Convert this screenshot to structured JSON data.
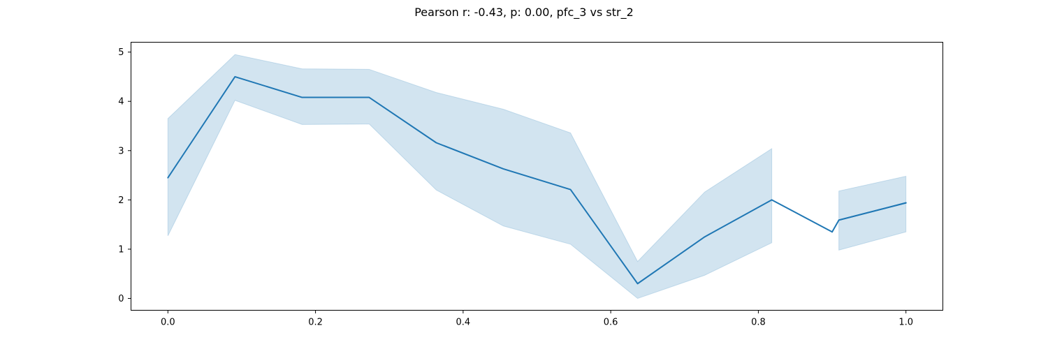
{
  "chart_data": {
    "type": "line",
    "title": "Pearson r: -0.43, p: 0.00, pfc_3 vs str_2",
    "xlabel": "",
    "ylabel": "",
    "xlim": [
      -0.05,
      1.05
    ],
    "ylim": [
      -0.24,
      5.2
    ],
    "x_ticks": [
      0.0,
      0.2,
      0.4,
      0.6,
      0.8,
      1.0
    ],
    "x_tick_labels": [
      "0.0",
      "0.2",
      "0.4",
      "0.6",
      "0.8",
      "1.0"
    ],
    "y_ticks": [
      0,
      1,
      2,
      3,
      4,
      5
    ],
    "y_tick_labels": [
      "0",
      "1",
      "2",
      "3",
      "4",
      "5"
    ],
    "grid": false,
    "legend": false,
    "line_color": "#1f77b4",
    "band_color": "#1f77b4",
    "series": [
      {
        "segments": [
          {
            "x": [
              0.0,
              0.0909,
              0.1818,
              0.2727,
              0.3636,
              0.4545,
              0.5455,
              0.6364,
              0.7273,
              0.8182
            ],
            "y": [
              2.45,
              4.5,
              4.08,
              4.08,
              3.16,
              2.63,
              2.21,
              0.3,
              1.25,
              2.0
            ],
            "ci_upper": [
              3.65,
              4.95,
              4.66,
              4.65,
              4.18,
              3.84,
              3.36,
              0.75,
              2.16,
              3.04
            ],
            "ci_lower": [
              1.27,
              4.02,
              3.53,
              3.54,
              2.2,
              1.47,
              1.1,
              0.0,
              0.47,
              1.13
            ]
          },
          {
            "x": [
              0.8182,
              0.9
            ],
            "y": [
              2.0,
              1.35
            ]
          },
          {
            "x": [
              0.9,
              0.9091,
              1.0
            ],
            "y": [
              1.35,
              1.59,
              1.94
            ]
          },
          {
            "x": [
              0.9091,
              1.0
            ],
            "y": [
              1.59,
              1.94
            ],
            "ci_upper": [
              2.18,
              2.48
            ],
            "ci_lower": [
              0.98,
              1.35
            ]
          }
        ]
      }
    ]
  }
}
